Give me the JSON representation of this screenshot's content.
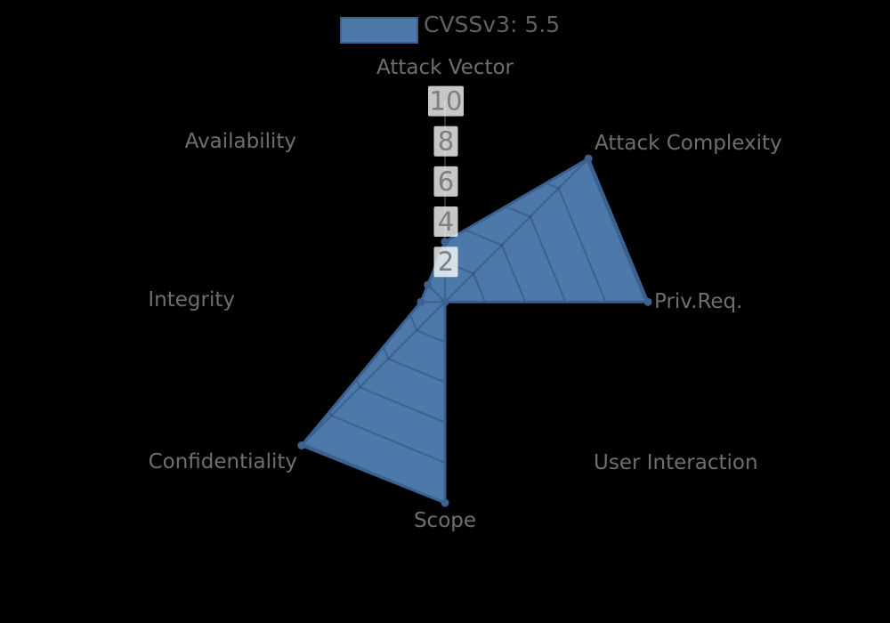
{
  "legend": {
    "label": "CVSSv3: 5.5"
  },
  "chart_data": {
    "type": "radar",
    "title": "",
    "categories": [
      "Attack Vector",
      "Attack Complexity",
      "Priv.Req.",
      "User Interaction",
      "Scope",
      "Confidentiality",
      "Integrity",
      "Availability"
    ],
    "series": [
      {
        "name": "CVSSv3: 5.5",
        "values": [
          3,
          10.1,
          10.1,
          0,
          10,
          10.1,
          1.2,
          1.2
        ]
      }
    ],
    "ticks": [
      2,
      4,
      6,
      8,
      10
    ],
    "rlim": [
      0,
      10
    ],
    "grid": true,
    "grid_visible_only_inside_area": true,
    "legend_position": "top",
    "colors": {
      "area_fill": "#4c78aa",
      "area_border": "#3b6191",
      "grid_line": "rgba(0,0,0,0.18)",
      "radial_axis_line": "#454545",
      "tick_backdrop": "rgba(255,255,255,0.78)",
      "tick_text": "#7e7e7e",
      "axis_label_text": "#6f6f6f",
      "legend_text": "#616161",
      "background": "#000000"
    }
  }
}
